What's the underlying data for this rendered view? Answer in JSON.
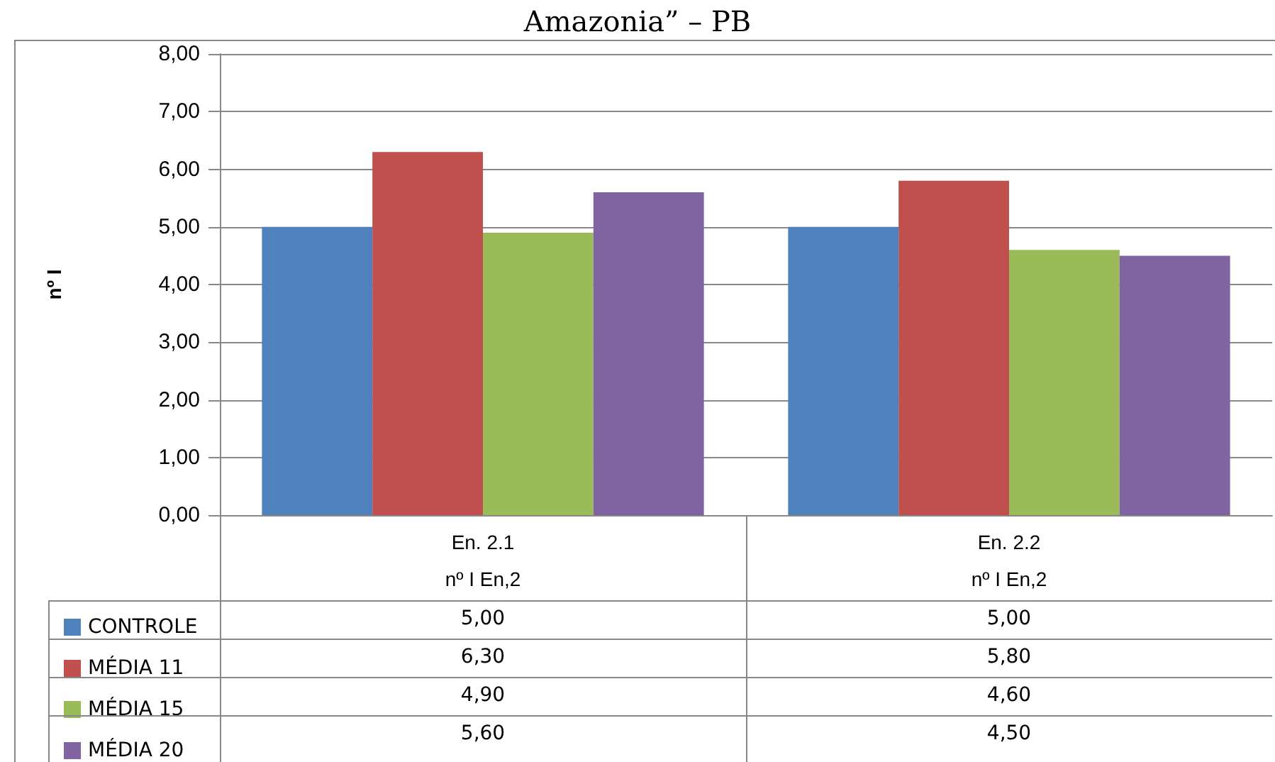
{
  "chart_data": {
    "type": "bar",
    "title": "Amazonia” – PB",
    "ylabel": "nº I",
    "categories": [
      "En. 2.1\nnº I En,2",
      "En. 2.2\nnº I En,2"
    ],
    "series": [
      {
        "name": "CONTROLE",
        "color": "#4f81bd",
        "values": [
          5.0,
          5.0
        ],
        "value_labels": [
          "5,00",
          "5,00"
        ]
      },
      {
        "name": "MÉDIA 11",
        "color": "#c0504d",
        "values": [
          6.3,
          5.8
        ],
        "value_labels": [
          "6,30",
          "5,80"
        ]
      },
      {
        "name": "MÉDIA 15",
        "color": "#9bbb59",
        "values": [
          4.9,
          4.6
        ],
        "value_labels": [
          "4,90",
          "4,60"
        ]
      },
      {
        "name": "MÉDIA 20",
        "color": "#8064a2",
        "values": [
          5.6,
          4.5
        ],
        "value_labels": [
          "5,60",
          "4,50"
        ]
      }
    ],
    "ylim": [
      0,
      8
    ],
    "yticks": [
      {
        "value": 0,
        "label": "0,00"
      },
      {
        "value": 1,
        "label": "1,00"
      },
      {
        "value": 2,
        "label": "2,00"
      },
      {
        "value": 3,
        "label": "3,00"
      },
      {
        "value": 4,
        "label": "4,00"
      },
      {
        "value": 5,
        "label": "5,00"
      },
      {
        "value": 6,
        "label": "6,00"
      },
      {
        "value": 7,
        "label": "7,00"
      },
      {
        "value": 8,
        "label": "8,00"
      }
    ],
    "grid": "y",
    "legend": "bottom left"
  }
}
